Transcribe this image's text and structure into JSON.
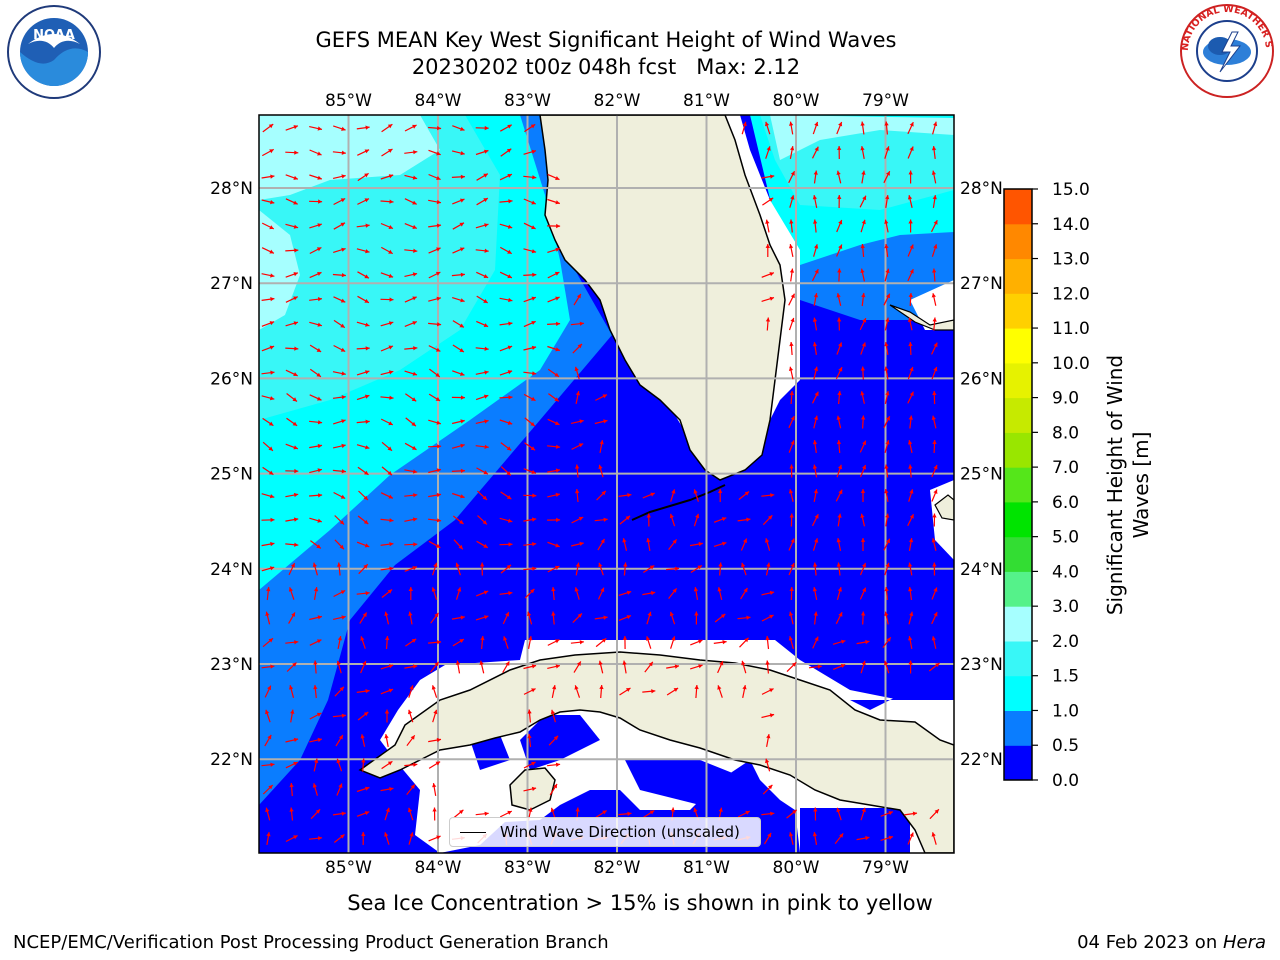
{
  "title": {
    "line1": "GEFS MEAN Key West Significant Height of Wind Waves",
    "line2": "20230202 t00z 048h fcst   Max: 2.12"
  },
  "map": {
    "lon_labels": [
      "85°W",
      "84°W",
      "83°W",
      "82°W",
      "81°W",
      "80°W",
      "79°W"
    ],
    "lat_labels": [
      "28°N",
      "27°N",
      "26°N",
      "25°N",
      "24°N",
      "23°N",
      "22°N"
    ],
    "land_color": "#efefdc",
    "arrow_color": "#ff0000",
    "legend_label": "Wind Wave Direction (unscaled)"
  },
  "colorbar": {
    "label": "Significant Height of Wind Waves [m]",
    "ticks": [
      "0.0",
      "0.5",
      "1.0",
      "1.5",
      "2.0",
      "3.0",
      "4.0",
      "5.0",
      "6.0",
      "7.0",
      "8.0",
      "9.0",
      "10.0",
      "11.0",
      "12.0",
      "13.0",
      "14.0",
      "15.0"
    ],
    "colors": [
      "#0000ff",
      "#0a7dff",
      "#00ffff",
      "#38f7f7",
      "#a6ffff",
      "#55f28a",
      "#33dd33",
      "#00e400",
      "#55e61a",
      "#99e600",
      "#c6ea00",
      "#e6f200",
      "#ffff00",
      "#ffd000",
      "#ffb000",
      "#ff8800",
      "#ff5500",
      "#ff2a00",
      "#ff0000"
    ]
  },
  "footer": {
    "ice_note": "Sea Ice Concentration > 15% is shown in pink to yellow",
    "credit": "NCEP/EMC/Verification Post Processing Product Generation Branch",
    "date": "04 Feb 2023 on ",
    "host": "Hera"
  },
  "logos": {
    "noaa_text": "NOAA",
    "nws_text": "NATIONAL WEATHER SERVICE"
  }
}
